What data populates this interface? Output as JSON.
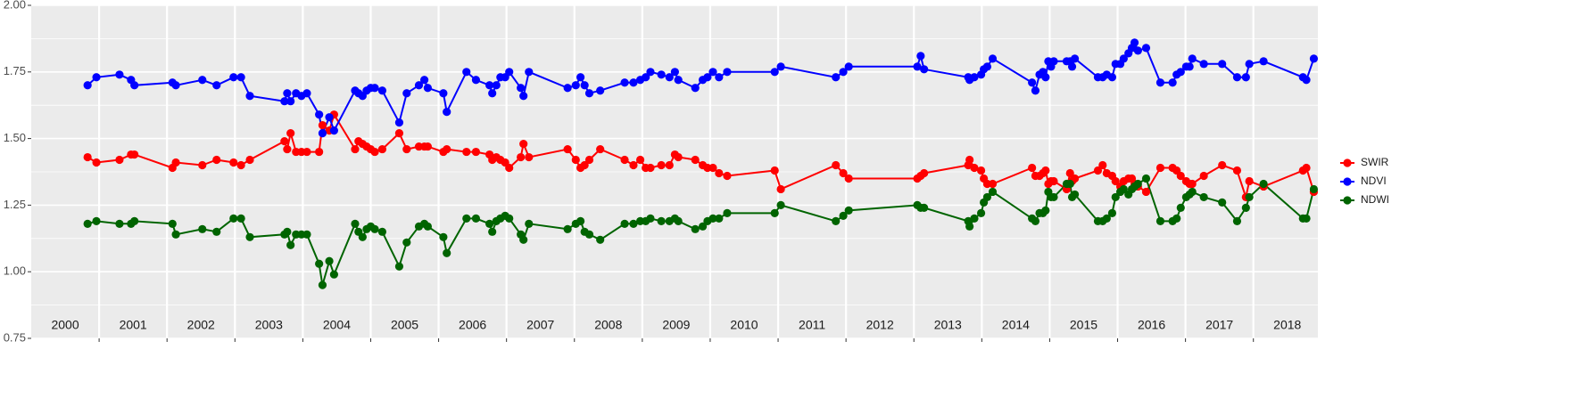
{
  "chart_data": {
    "type": "line",
    "xlim": [
      2000.0,
      2018.95
    ],
    "ylim": [
      0.75,
      2.0
    ],
    "yticks": [
      {
        "value": 0.75,
        "label": "0.75"
      },
      {
        "value": 1.0,
        "label": "1.00"
      },
      {
        "value": 1.25,
        "label": "1.25"
      },
      {
        "value": 1.5,
        "label": "1.50"
      },
      {
        "value": 1.75,
        "label": "1.75"
      },
      {
        "value": 2.0,
        "label": "2.00"
      }
    ],
    "y_minor_grid": [
      0.875,
      1.125,
      1.375,
      1.625,
      1.875
    ],
    "x_gridlines": [
      2001,
      2002,
      2003,
      2004,
      2005,
      2006,
      2007,
      2008,
      2009,
      2010,
      2011,
      2012,
      2013,
      2014,
      2015,
      2016,
      2017,
      2018
    ],
    "xticks": [
      {
        "value": 2000.5,
        "label": "2000"
      },
      {
        "value": 2001.5,
        "label": "2001"
      },
      {
        "value": 2002.5,
        "label": "2002"
      },
      {
        "value": 2003.5,
        "label": "2003"
      },
      {
        "value": 2004.5,
        "label": "2004"
      },
      {
        "value": 2005.5,
        "label": "2005"
      },
      {
        "value": 2006.5,
        "label": "2006"
      },
      {
        "value": 2007.5,
        "label": "2007"
      },
      {
        "value": 2008.5,
        "label": "2008"
      },
      {
        "value": 2009.5,
        "label": "2009"
      },
      {
        "value": 2010.5,
        "label": "2010"
      },
      {
        "value": 2011.5,
        "label": "2011"
      },
      {
        "value": 2012.5,
        "label": "2012"
      },
      {
        "value": 2013.5,
        "label": "2013"
      },
      {
        "value": 2014.5,
        "label": "2014"
      },
      {
        "value": 2015.5,
        "label": "2015"
      },
      {
        "value": 2016.5,
        "label": "2016"
      },
      {
        "value": 2017.5,
        "label": "2017"
      },
      {
        "value": 2018.5,
        "label": "2018"
      }
    ],
    "grid": true,
    "legend": "right",
    "x": [
      2000.83,
      2000.96,
      2001.3,
      2001.47,
      2001.52,
      2002.08,
      2002.13,
      2002.52,
      2002.73,
      2002.98,
      2003.09,
      2003.22,
      2003.73,
      2003.77,
      2003.82,
      2003.9,
      2003.98,
      2004.06,
      2004.24,
      2004.29,
      2004.39,
      2004.46,
      2004.77,
      2004.82,
      2004.88,
      2004.94,
      2005.0,
      2005.06,
      2005.17,
      2005.42,
      2005.53,
      2005.71,
      2005.79,
      2005.84,
      2006.07,
      2006.12,
      2006.41,
      2006.55,
      2006.75,
      2006.79,
      2006.85,
      2006.91,
      2006.98,
      2007.04,
      2007.21,
      2007.25,
      2007.33,
      2007.9,
      2008.02,
      2008.09,
      2008.15,
      2008.22,
      2008.38,
      2008.74,
      2008.87,
      2008.97,
      2009.05,
      2009.12,
      2009.28,
      2009.4,
      2009.48,
      2009.53,
      2009.78,
      2009.89,
      2009.96,
      2010.04,
      2010.13,
      2010.25,
      2010.95,
      2011.04,
      2011.85,
      2011.96,
      2012.04,
      2013.05,
      2013.1,
      2013.15,
      2013.8,
      2013.82,
      2013.89,
      2013.99,
      2014.03,
      2014.08,
      2014.16,
      2014.74,
      2014.79,
      2014.85,
      2014.9,
      2014.94,
      2014.98,
      2015.02,
      2015.06,
      2015.25,
      2015.3,
      2015.33,
      2015.37,
      2015.71,
      2015.78,
      2015.84,
      2015.92,
      2015.97,
      2016.04,
      2016.09,
      2016.16,
      2016.21,
      2016.25,
      2016.3,
      2016.42,
      2016.63,
      2016.81,
      2016.87,
      2016.93,
      2017.01,
      2017.06,
      2017.1,
      2017.27,
      2017.54,
      2017.76,
      2017.89,
      2017.94,
      2018.15,
      2018.73,
      2018.78,
      2018.89
    ],
    "series": [
      {
        "name": "SWIR",
        "color": "#ff0000",
        "values": [
          1.43,
          1.41,
          1.42,
          1.44,
          1.44,
          1.39,
          1.41,
          1.4,
          1.42,
          1.41,
          1.4,
          1.42,
          1.49,
          1.46,
          1.52,
          1.45,
          1.45,
          1.45,
          1.45,
          1.55,
          1.53,
          1.59,
          1.46,
          1.49,
          1.48,
          1.47,
          1.46,
          1.45,
          1.46,
          1.52,
          1.46,
          1.47,
          1.47,
          1.47,
          1.45,
          1.46,
          1.45,
          1.45,
          1.44,
          1.42,
          1.43,
          1.42,
          1.41,
          1.39,
          1.43,
          1.48,
          1.43,
          1.46,
          1.42,
          1.39,
          1.4,
          1.42,
          1.46,
          1.42,
          1.4,
          1.42,
          1.39,
          1.39,
          1.4,
          1.4,
          1.44,
          1.43,
          1.42,
          1.4,
          1.39,
          1.39,
          1.37,
          1.36,
          1.38,
          1.31,
          1.4,
          1.37,
          1.35,
          1.35,
          1.36,
          1.37,
          1.4,
          1.42,
          1.39,
          1.38,
          1.35,
          1.33,
          1.33,
          1.39,
          1.36,
          1.36,
          1.37,
          1.38,
          1.33,
          1.34,
          1.34,
          1.31,
          1.37,
          1.34,
          1.35,
          1.38,
          1.4,
          1.37,
          1.36,
          1.34,
          1.32,
          1.34,
          1.35,
          1.35,
          1.33,
          1.32,
          1.3,
          1.39,
          1.39,
          1.38,
          1.36,
          1.34,
          1.33,
          1.33,
          1.36,
          1.4,
          1.38,
          1.28,
          1.34,
          1.32,
          1.38,
          1.39,
          1.3
        ]
      },
      {
        "name": "NDVI",
        "color": "#0000ff",
        "values": [
          1.7,
          1.73,
          1.74,
          1.72,
          1.7,
          1.71,
          1.7,
          1.72,
          1.7,
          1.73,
          1.73,
          1.66,
          1.64,
          1.67,
          1.64,
          1.67,
          1.66,
          1.67,
          1.59,
          1.52,
          1.58,
          1.53,
          1.68,
          1.67,
          1.66,
          1.68,
          1.69,
          1.69,
          1.68,
          1.56,
          1.67,
          1.7,
          1.72,
          1.69,
          1.67,
          1.6,
          1.75,
          1.72,
          1.7,
          1.67,
          1.7,
          1.73,
          1.73,
          1.75,
          1.69,
          1.66,
          1.75,
          1.69,
          1.7,
          1.73,
          1.7,
          1.67,
          1.68,
          1.71,
          1.71,
          1.72,
          1.73,
          1.75,
          1.74,
          1.73,
          1.75,
          1.72,
          1.69,
          1.72,
          1.73,
          1.75,
          1.73,
          1.75,
          1.75,
          1.77,
          1.73,
          1.75,
          1.77,
          1.77,
          1.81,
          1.76,
          1.73,
          1.72,
          1.73,
          1.74,
          1.76,
          1.77,
          1.8,
          1.71,
          1.68,
          1.74,
          1.75,
          1.73,
          1.79,
          1.77,
          1.79,
          1.79,
          1.79,
          1.77,
          1.8,
          1.73,
          1.73,
          1.74,
          1.73,
          1.78,
          1.78,
          1.8,
          1.82,
          1.84,
          1.86,
          1.83,
          1.84,
          1.71,
          1.71,
          1.74,
          1.75,
          1.77,
          1.77,
          1.8,
          1.78,
          1.78,
          1.73,
          1.73,
          1.78,
          1.79,
          1.73,
          1.72,
          1.8
        ]
      },
      {
        "name": "NDWI",
        "color": "#006400",
        "values": [
          1.18,
          1.19,
          1.18,
          1.18,
          1.19,
          1.18,
          1.14,
          1.16,
          1.15,
          1.2,
          1.2,
          1.13,
          1.14,
          1.15,
          1.1,
          1.14,
          1.14,
          1.14,
          1.03,
          0.95,
          1.04,
          0.99,
          1.18,
          1.15,
          1.13,
          1.16,
          1.17,
          1.16,
          1.15,
          1.02,
          1.11,
          1.17,
          1.18,
          1.17,
          1.13,
          1.07,
          1.2,
          1.2,
          1.18,
          1.15,
          1.19,
          1.2,
          1.21,
          1.2,
          1.14,
          1.12,
          1.18,
          1.16,
          1.18,
          1.19,
          1.15,
          1.14,
          1.12,
          1.18,
          1.18,
          1.19,
          1.19,
          1.2,
          1.19,
          1.19,
          1.2,
          1.19,
          1.16,
          1.17,
          1.19,
          1.2,
          1.2,
          1.22,
          1.22,
          1.25,
          1.19,
          1.21,
          1.23,
          1.25,
          1.24,
          1.24,
          1.19,
          1.17,
          1.2,
          1.22,
          1.26,
          1.28,
          1.3,
          1.2,
          1.19,
          1.22,
          1.22,
          1.23,
          1.3,
          1.28,
          1.28,
          1.33,
          1.33,
          1.28,
          1.29,
          1.19,
          1.19,
          1.2,
          1.22,
          1.28,
          1.3,
          1.31,
          1.29,
          1.31,
          1.32,
          1.33,
          1.35,
          1.19,
          1.19,
          1.2,
          1.24,
          1.28,
          1.29,
          1.3,
          1.28,
          1.26,
          1.19,
          1.24,
          1.28,
          1.33,
          1.2,
          1.2,
          1.31
        ]
      }
    ]
  }
}
